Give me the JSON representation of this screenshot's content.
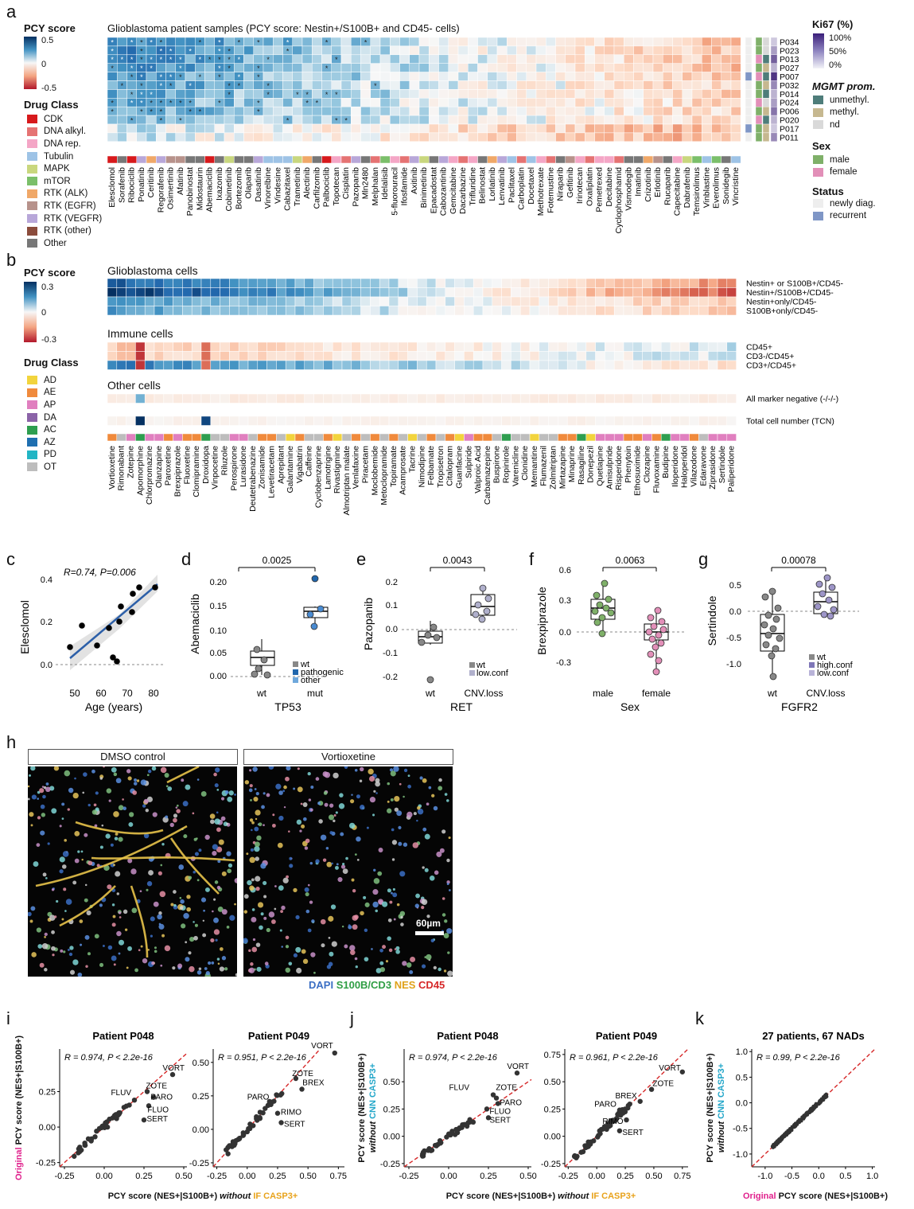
{
  "panels": {
    "a": "a",
    "b": "b",
    "c": "c",
    "d": "d",
    "e": "e",
    "f": "f",
    "g": "g",
    "h": "h",
    "i": "i",
    "j": "j",
    "k": "k"
  },
  "a": {
    "title": "Glioblastoma patient samples (PCY score: Nestin+/S100B+ and CD45- cells)",
    "pcy_title": "PCY score",
    "pcy_ticks": [
      "0.5",
      "0",
      "-0.5"
    ],
    "drugclass_title": "Drug Class",
    "drugclass": [
      {
        "label": "CDK",
        "color": "#d7191c"
      },
      {
        "label": "DNA alkyl.",
        "color": "#e57373"
      },
      {
        "label": "DNA rep.",
        "color": "#f4a6c6"
      },
      {
        "label": "Tubulin",
        "color": "#9ec3e6"
      },
      {
        "label": "MAPK",
        "color": "#c9d77e"
      },
      {
        "label": "mTOR",
        "color": "#7bbf6a"
      },
      {
        "label": "RTK (ALK)",
        "color": "#f0a868"
      },
      {
        "label": "RTK (EGFR)",
        "color": "#b7928b"
      },
      {
        "label": "RTK (VEGFR)",
        "color": "#b8a7d9"
      },
      {
        "label": "RTK (other)",
        "color": "#8b4c3c"
      },
      {
        "label": "Other",
        "color": "#777777"
      }
    ],
    "ki67_title": "Ki67 (%)",
    "ki67_ticks": [
      "100%",
      "50%",
      "0%"
    ],
    "mgmt_title": "MGMT prom.",
    "mgmt": [
      {
        "label": "unmethyl.",
        "color": "#4e7d7a"
      },
      {
        "label": "methyl.",
        "color": "#c6b890"
      },
      {
        "label": "nd",
        "color": "#d9d9d9"
      }
    ],
    "sex_title": "Sex",
    "sex": [
      {
        "label": "male",
        "color": "#7fb069"
      },
      {
        "label": "female",
        "color": "#e28fb8"
      }
    ],
    "status_title": "Status",
    "status": [
      {
        "label": "newly diag.",
        "color": "#eeeeee"
      },
      {
        "label": "recurrent",
        "color": "#7f96c6"
      }
    ],
    "patients": [
      "P034",
      "P023",
      "P013",
      "P027",
      "P007",
      "P032",
      "P014",
      "P024",
      "P006",
      "P020",
      "P017",
      "P011"
    ],
    "drugs": [
      "Elesclomol",
      "Sorafenib",
      "Ribociclib",
      "Ponatinib",
      "Ceritinib",
      "Regorafenib",
      "Osimertinib",
      "Afatinib",
      "Panobinostat",
      "Midostaurin",
      "Abemaciclib",
      "Ixazomib",
      "Cobimetinib",
      "Bortezomib",
      "Olaparib",
      "Dasatinib",
      "Vinorelbine",
      "Vindesine",
      "Cabazitaxel",
      "Trametinib",
      "Alectinib",
      "Carfilzomib",
      "Palbociclib",
      "Topotecan",
      "Cisplatin",
      "Pazopanib",
      "Mln2480",
      "Melphalan",
      "Idelalisib",
      "5-fluorouracil",
      "Ifosfamide",
      "Axitinib",
      "Binimetinib",
      "Epacadostat",
      "Cabozantinib",
      "Gemcitabine",
      "Dacarbazine",
      "Trifluridine",
      "Belinostat",
      "Lorlatinib",
      "Lenvatinib",
      "Paclitaxel",
      "Carboplatin",
      "Docetaxel",
      "Methotrexate",
      "Fotemustine",
      "Niraparib",
      "Gefitinib",
      "Irinotecan",
      "Oxaliplatin",
      "Pemetrexed",
      "Decitabine",
      "Cyclophosphamid",
      "Vismodegib",
      "Imatinib",
      "Crizotinib",
      "Erlotinib",
      "Rucaparib",
      "Capecitabine",
      "Dabrafenib",
      "Temsirolimus",
      "Vinblastine",
      "Everolimus",
      "Sonidegib",
      "Vincristine"
    ]
  },
  "b": {
    "pcy_title": "PCY score",
    "pcy_ticks": [
      "0.3",
      "0",
      "-0.3"
    ],
    "drugclass_title": "Drug Class",
    "drugclass": [
      {
        "label": "AD",
        "color": "#f2d43d"
      },
      {
        "label": "AE",
        "color": "#f08a3c"
      },
      {
        "label": "AP",
        "color": "#e07fbf"
      },
      {
        "label": "DA",
        "color": "#8b63a8"
      },
      {
        "label": "AC",
        "color": "#2e9e4f"
      },
      {
        "label": "AZ",
        "color": "#1f6fb0"
      },
      {
        "label": "PD",
        "color": "#22b5c4"
      },
      {
        "label": "OT",
        "color": "#bdbdbd"
      }
    ],
    "sections": [
      "Glioblastoma cells",
      "Immune cells",
      "Other cells"
    ],
    "rows_glio": [
      "Nestin+ or S100B+/CD45-",
      "Nestin+/S100B+/CD45-",
      "Nestin+only/CD45-",
      "S100B+only/CD45-"
    ],
    "rows_immune": [
      "CD45+",
      "CD3-/CD45+",
      "CD3+/CD45+"
    ],
    "rows_other1": [
      "All marker negative (-/-/-)"
    ],
    "rows_other2": [
      "Total cell number (TCN)"
    ],
    "drugs": [
      "Vortioxetine",
      "Rimonabant",
      "Zotepine",
      "Apomorphine",
      "Chlorpromazine",
      "Olanzapine",
      "Paroxetine",
      "Brexpiprazole",
      "Fluoxetine",
      "Clomipramine",
      "Droxidopa",
      "Vinpocetine",
      "Riluzole",
      "Perospirone",
      "Lurasidone",
      "Deutetrabenazine",
      "Zonisamide",
      "Levetiracetam",
      "Aprepitant",
      "Galantamine",
      "Vigabatrin",
      "Caffeine",
      "Cyclobenzaprine",
      "Lamotrigine",
      "Rivastigmine",
      "Almotriptan malate",
      "Venlafaxine",
      "Piracetam",
      "Moclobemide",
      "Metoclopramide",
      "Topiramate",
      "Acamprosate",
      "Tacrine",
      "Nimodipine",
      "Felbamate",
      "Tropisetron",
      "Citalopram",
      "Guanfacine",
      "Sulpiride",
      "Valproic Acid",
      "Carbamazepine",
      "Buspirone",
      "Ropinirole",
      "Varenicline",
      "Clonidine",
      "Memantine",
      "Flumazenil",
      "Zolmitriptan",
      "Mirtazapine",
      "Minaprine",
      "Rasagiline",
      "Donepezil",
      "Quetiapine",
      "Amisulpride",
      "Risperidone",
      "Phenytoin",
      "Ethosuximide",
      "Clozapine",
      "Fluvoxamine",
      "Budipine",
      "Iloperidone",
      "Haloperidol",
      "Vilazodone",
      "Edaravone",
      "Ziprasidone",
      "Sertindole",
      "Paliperidone"
    ]
  },
  "c": {
    "stat": "R=0.74, P=0.006",
    "xlabel": "Age (years)",
    "ylabel": "Elesclomol",
    "xticks": [
      "50",
      "60",
      "70",
      "80"
    ],
    "yticks": [
      "0.4",
      "0.2",
      "0.0"
    ]
  },
  "d": {
    "pval": "0.0025",
    "ylabel": "Abemaciclib",
    "xlabel": "TP53",
    "cats": [
      "wt",
      "mut"
    ],
    "legend": [
      "wt",
      "pathogenic",
      "other"
    ],
    "yticks": [
      "0.20",
      "0.15",
      "0.10",
      "0.05",
      "0.00"
    ]
  },
  "e": {
    "pval": "0.0043",
    "ylabel": "Pazopanib",
    "xlabel": "RET",
    "cats": [
      "wt",
      "CNV.loss"
    ],
    "legend": [
      "wt",
      "low.conf"
    ],
    "yticks": [
      "0.2",
      "0.1",
      "0.0",
      "-0.1",
      "-0.2"
    ]
  },
  "f": {
    "pval": "0.0063",
    "ylabel": "Brexpiprazole",
    "xlabel": "Sex",
    "cats": [
      "male",
      "female"
    ],
    "yticks": [
      "0.6",
      "0.3",
      "0.0",
      "-0.3"
    ]
  },
  "g": {
    "pval": "0.00078",
    "ylabel": "Sertindole",
    "xlabel": "FGFR2",
    "cats": [
      "wt",
      "CNV.loss"
    ],
    "legend": [
      "wt",
      "high.conf",
      "low.conf"
    ],
    "yticks": [
      "0.5",
      "0.0",
      "-0.5",
      "-1.0"
    ]
  },
  "h": {
    "left_title": "DMSO control",
    "right_title": "Vortioxetine",
    "scalebar": "60µm",
    "stain": [
      {
        "label": "DAPI",
        "color": "#3b6fc4"
      },
      {
        "label": "S100B/CD3",
        "color": "#2f9e44"
      },
      {
        "label": "NES",
        "color": "#e0a21a"
      },
      {
        "label": "CD45",
        "color": "#d62728"
      }
    ]
  },
  "i": {
    "titles": [
      "Patient P048",
      "Patient P049"
    ],
    "stats": [
      "R = 0.974, P < 2.2e-16",
      "R = 0.951, P < 2.2e-16"
    ],
    "ylabel_pre": "Original",
    "ylabel_post": " PCY score (NES+|S100B+)",
    "xlabel_pre": "PCY score (NES+|S100B+) ",
    "xlabel_it": "without",
    "xlabel_post": " IF CASP3+",
    "labels1": [
      "VORT",
      "ZOTE",
      "FLUV",
      "PARO",
      "FLUO",
      "SERT"
    ],
    "labels2": [
      "VORT",
      "ZOTE",
      "BREX",
      "PARO",
      "RIMO",
      "SERT"
    ],
    "xticks1": [
      "-0.25",
      "0.00",
      "0.25",
      "0.50"
    ],
    "xticks2": [
      "-0.25",
      "0.00",
      "0.25",
      "0.50",
      "0.75"
    ],
    "yticks": [
      "0.50",
      "0.25",
      "0.00",
      "-0.25"
    ]
  },
  "j": {
    "titles": [
      "Patient P048",
      "Patient P049"
    ],
    "stats": [
      "R = 0.974, P < 2.2e-16",
      "R = 0.961, P < 2.2e-16"
    ],
    "ylabel_a": "PCY score (NES+|S100B+)",
    "ylabel_b_it": "without",
    "ylabel_b_cnn": " CNN CASP3+",
    "xlabel_pre": "PCY score (NES+|S100B+) ",
    "xlabel_it": "without",
    "xlabel_post": " IF CASP3+",
    "labels1": [
      "VORT",
      "FLUV",
      "ZOTE",
      "PARO",
      "FLUO",
      "SERT"
    ],
    "labels2": [
      "VORT",
      "ZOTE",
      "BREX",
      "PARO",
      "RIMO",
      "SERT"
    ],
    "xticks1": [
      "-0.25",
      "0.00",
      "0.25",
      "0.50"
    ],
    "xticks2": [
      "-0.25",
      "0.00",
      "0.25",
      "0.50",
      "0.75"
    ],
    "yticks": [
      "0.75",
      "0.50",
      "0.25",
      "0.00",
      "-0.25"
    ]
  },
  "k": {
    "title": "27 patients, 67 NADs",
    "stat": "R = 0.99, P < 2.2e-16",
    "ylabel_a": "PCY score (NES+|S100B+)",
    "ylabel_b_it": "without",
    "ylabel_b_cnn": " CNN CASP3+",
    "xlabel_pre": "Original",
    "xlabel_post": " PCY score (NES+|S100B+)",
    "xticks": [
      "-1.0",
      "-0.5",
      "0.0",
      "0.5",
      "1.0"
    ],
    "yticks": [
      "1.0",
      "0.5",
      "0.0",
      "-0.5",
      "-1.0"
    ]
  }
}
